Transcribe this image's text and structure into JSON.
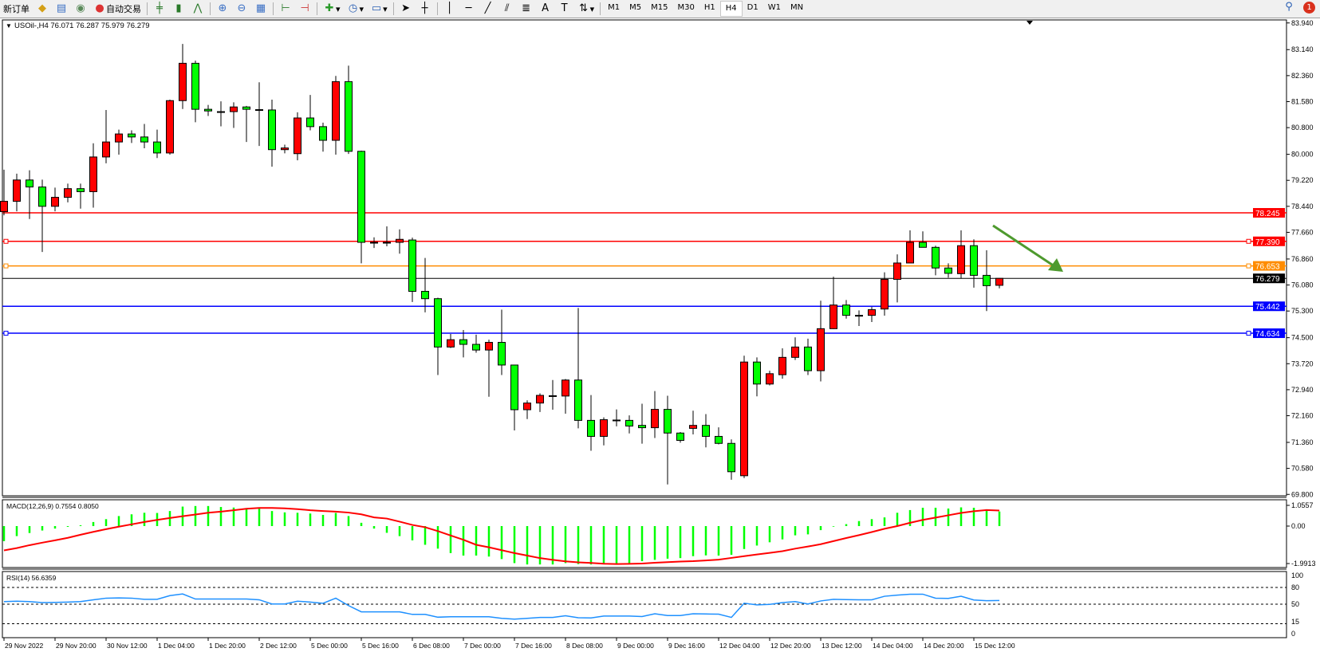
{
  "toolbar": {
    "new_order": "新订单",
    "auto_trading": "自动交易",
    "timeframes": [
      "M1",
      "M5",
      "M15",
      "M30",
      "H1",
      "H4",
      "D1",
      "W1",
      "MN"
    ],
    "active_timeframe": "H4",
    "notifications": "1"
  },
  "chart": {
    "header": "USOil-,H4  76.071 76.287 75.979 76.279",
    "macd_label": "MACD(12,26,9) 0.7554 0.8050",
    "rsi_label": "RSI(14) 56.6359",
    "bull_color": "#ff0000",
    "bear_color": "#00ff00"
  },
  "chart_data": {
    "type": "candlestick",
    "symbol": "USOil-",
    "timeframe": "H4",
    "ohlc_fields": [
      "open",
      "high",
      "low",
      "close"
    ],
    "candles": [
      [
        78.28,
        79.54,
        78.17,
        78.59
      ],
      [
        78.59,
        79.42,
        78.29,
        79.23
      ],
      [
        79.23,
        79.52,
        78.06,
        79.02
      ],
      [
        79.02,
        79.24,
        77.07,
        78.44
      ],
      [
        78.44,
        79.0,
        78.29,
        78.71
      ],
      [
        78.71,
        79.12,
        78.56,
        78.97
      ],
      [
        78.97,
        79.12,
        78.37,
        78.88
      ],
      [
        78.88,
        80.33,
        78.4,
        79.92
      ],
      [
        79.92,
        81.33,
        79.73,
        80.37
      ],
      [
        80.37,
        80.74,
        79.99,
        80.61
      ],
      [
        80.61,
        80.72,
        80.34,
        80.52
      ],
      [
        80.52,
        80.91,
        80.18,
        80.37
      ],
      [
        80.37,
        80.74,
        79.89,
        80.04
      ],
      [
        80.04,
        81.64,
        79.99,
        81.61
      ],
      [
        81.61,
        83.31,
        81.36,
        82.73
      ],
      [
        82.73,
        82.81,
        80.96,
        81.35
      ],
      [
        81.35,
        81.48,
        81.15,
        81.3
      ],
      [
        81.28,
        81.59,
        80.84,
        81.27
      ],
      [
        81.28,
        81.56,
        80.79,
        81.42
      ],
      [
        81.42,
        81.45,
        80.37,
        81.35
      ],
      [
        81.34,
        82.16,
        80.25,
        81.33
      ],
      [
        81.33,
        81.64,
        79.63,
        80.14
      ],
      [
        80.14,
        80.29,
        80.03,
        80.19
      ],
      [
        80.02,
        81.26,
        79.82,
        81.09
      ],
      [
        81.09,
        81.78,
        80.72,
        80.83
      ],
      [
        80.83,
        80.95,
        80.08,
        80.42
      ],
      [
        80.42,
        82.35,
        79.99,
        82.18
      ],
      [
        82.18,
        82.66,
        80.01,
        80.09
      ],
      [
        80.09,
        80.11,
        76.73,
        77.36
      ],
      [
        77.36,
        77.51,
        77.19,
        77.35
      ],
      [
        77.36,
        77.84,
        77.24,
        77.35
      ],
      [
        77.36,
        77.75,
        77.02,
        77.45
      ],
      [
        77.43,
        77.5,
        75.57,
        75.89
      ],
      [
        75.89,
        76.89,
        75.26,
        75.67
      ],
      [
        75.67,
        75.7,
        73.38,
        74.22
      ],
      [
        74.22,
        74.61,
        74.19,
        74.44
      ],
      [
        74.44,
        74.73,
        73.91,
        74.3
      ],
      [
        74.3,
        74.59,
        74.05,
        74.13
      ],
      [
        74.13,
        74.44,
        72.73,
        74.36
      ],
      [
        74.36,
        75.34,
        73.38,
        73.68
      ],
      [
        73.68,
        73.68,
        71.72,
        72.34
      ],
      [
        72.34,
        72.62,
        72.06,
        72.54
      ],
      [
        72.54,
        72.83,
        72.27,
        72.77
      ],
      [
        72.76,
        73.23,
        72.34,
        72.75
      ],
      [
        72.75,
        73.26,
        72.22,
        73.23
      ],
      [
        73.23,
        75.39,
        71.78,
        72.02
      ],
      [
        72.02,
        72.78,
        71.11,
        71.54
      ],
      [
        71.54,
        72.11,
        71.27,
        72.04
      ],
      [
        72.03,
        72.35,
        71.84,
        72.02
      ],
      [
        72.02,
        72.17,
        71.63,
        71.85
      ],
      [
        71.87,
        72.52,
        71.32,
        71.8
      ],
      [
        71.8,
        72.9,
        71.49,
        72.35
      ],
      [
        72.35,
        72.76,
        70.1,
        71.64
      ],
      [
        71.64,
        71.67,
        71.35,
        71.42
      ],
      [
        71.78,
        72.31,
        71.6,
        71.87
      ],
      [
        71.87,
        72.21,
        71.21,
        71.54
      ],
      [
        71.54,
        71.81,
        71.3,
        71.33
      ],
      [
        71.33,
        71.45,
        70.24,
        70.48
      ],
      [
        70.36,
        73.96,
        70.29,
        73.77
      ],
      [
        73.77,
        73.91,
        72.74,
        73.11
      ],
      [
        73.11,
        73.51,
        73.07,
        73.42
      ],
      [
        73.39,
        74.18,
        73.27,
        73.91
      ],
      [
        73.91,
        74.51,
        73.83,
        74.22
      ],
      [
        74.22,
        74.47,
        73.38,
        73.51
      ],
      [
        73.51,
        75.61,
        73.19,
        74.77
      ],
      [
        74.77,
        76.33,
        74.76,
        75.48
      ],
      [
        75.48,
        75.63,
        75.07,
        75.17
      ],
      [
        75.17,
        75.32,
        74.85,
        75.16
      ],
      [
        75.17,
        75.42,
        74.97,
        75.34
      ],
      [
        75.36,
        76.46,
        75.16,
        76.25
      ],
      [
        76.25,
        77.0,
        75.56,
        76.74
      ],
      [
        76.74,
        77.72,
        76.74,
        77.36
      ],
      [
        77.36,
        77.69,
        77.21,
        77.21
      ],
      [
        77.21,
        77.26,
        76.37,
        76.59
      ],
      [
        76.59,
        76.73,
        76.3,
        76.43
      ],
      [
        76.42,
        77.72,
        76.27,
        77.26
      ],
      [
        77.26,
        77.45,
        76.0,
        76.37
      ],
      [
        76.37,
        77.12,
        75.3,
        76.06
      ],
      [
        76.071,
        76.287,
        75.979,
        76.279
      ]
    ],
    "price_axis": {
      "range": [
        69.8,
        83.94
      ],
      "ticks": [
        "83.940",
        "83.140",
        "82.360",
        "81.580",
        "80.800",
        "80.000",
        "79.220",
        "78.440",
        "77.660",
        "76.860",
        "76.080",
        "75.300",
        "74.500",
        "73.720",
        "72.940",
        "72.160",
        "71.360",
        "70.580",
        "69.800"
      ]
    },
    "horizontal_lines": [
      {
        "price": "78.245",
        "color": "#ff0000"
      },
      {
        "price": "77.390",
        "color": "#ff0000"
      },
      {
        "price": "76.653",
        "color": "#ff8c00"
      },
      {
        "price": "76.279",
        "color": "#000000"
      },
      {
        "price": "75.442",
        "color": "#0000ff"
      },
      {
        "price": "74.634",
        "color": "#0000ff"
      }
    ],
    "annotation_arrow": {
      "direction": "down-right",
      "color": "#4e9a2e"
    },
    "time_labels": [
      "29 Nov 2022",
      "29 Nov 20:00",
      "30 Nov 12:00",
      "1 Dec 04:00",
      "1 Dec 20:00",
      "2 Dec 12:00",
      "5 Dec 00:00",
      "5 Dec 16:00",
      "6 Dec 08:00",
      "7 Dec 00:00",
      "7 Dec 16:00",
      "8 Dec 08:00",
      "9 Dec 00:00",
      "9 Dec 16:00",
      "12 Dec 04:00",
      "12 Dec 20:00",
      "13 Dec 12:00",
      "14 Dec 04:00",
      "14 Dec 20:00",
      "15 Dec 12:00"
    ],
    "macd": {
      "ticks": [
        "1.0557",
        "0.00",
        "-1.9913"
      ],
      "range": [
        -1.9913,
        1.0557
      ],
      "histogram_color": "#00ff00",
      "signal_color": "#ff0000",
      "histogram": [
        -0.78,
        -0.52,
        -0.36,
        -0.23,
        -0.13,
        -0.04,
        0.04,
        0.21,
        0.36,
        0.52,
        0.61,
        0.69,
        0.68,
        0.78,
        1.01,
        1.04,
        1.04,
        0.99,
        0.96,
        0.91,
        0.91,
        0.78,
        0.71,
        0.69,
        0.65,
        0.58,
        0.68,
        0.52,
        0.17,
        -0.13,
        -0.35,
        -0.52,
        -0.74,
        -0.97,
        -1.17,
        -1.4,
        -1.53,
        -1.53,
        -1.58,
        -1.71,
        -1.92,
        -1.99,
        -1.99,
        -1.99,
        -1.92,
        -1.97,
        -1.99,
        -1.95,
        -1.95,
        -1.95,
        -1.82,
        -1.75,
        -1.69,
        -1.66,
        -1.56,
        -1.52,
        -1.53,
        -1.49,
        -1.19,
        -1.01,
        -0.84,
        -0.69,
        -0.48,
        -0.43,
        -0.21,
        -0.03,
        0.1,
        0.26,
        0.36,
        0.45,
        0.69,
        0.83,
        0.95,
        0.95,
        0.91,
        0.97,
        0.95,
        0.87,
        0.7554
      ],
      "signal": [
        -1.26,
        -1.14,
        -0.99,
        -0.86,
        -0.74,
        -0.61,
        -0.45,
        -0.3,
        -0.16,
        -0.03,
        0.09,
        0.21,
        0.32,
        0.42,
        0.51,
        0.6,
        0.69,
        0.75,
        0.82,
        0.9,
        0.94,
        0.94,
        0.92,
        0.88,
        0.82,
        0.78,
        0.75,
        0.7,
        0.61,
        0.45,
        0.39,
        0.23,
        0.06,
        -0.06,
        -0.26,
        -0.49,
        -0.71,
        -0.97,
        -1.1,
        -1.25,
        -1.4,
        -1.53,
        -1.66,
        -1.75,
        -1.83,
        -1.88,
        -1.91,
        -1.95,
        -1.97,
        -1.96,
        -1.94,
        -1.9,
        -1.87,
        -1.84,
        -1.82,
        -1.78,
        -1.74,
        -1.65,
        -1.56,
        -1.47,
        -1.39,
        -1.3,
        -1.17,
        -1.06,
        -0.94,
        -0.78,
        -0.62,
        -0.47,
        -0.31,
        -0.14,
        0.0,
        0.17,
        0.32,
        0.44,
        0.56,
        0.68,
        0.77,
        0.83,
        0.805
      ]
    },
    "rsi": {
      "ticks": [
        "100",
        "80",
        "50",
        "15",
        "0"
      ],
      "levels": [
        80,
        50,
        15
      ],
      "color": "#1e90ff",
      "values": [
        54.6,
        55.4,
        54.6,
        52.9,
        53.3,
        53.8,
        54.6,
        57.9,
        60.8,
        61.3,
        60.8,
        58.8,
        58.8,
        65.4,
        68.3,
        59.2,
        59.2,
        59.2,
        59.2,
        59.2,
        57.9,
        50.4,
        50.4,
        55.4,
        53.8,
        51.7,
        60.8,
        47.5,
        36.3,
        36.3,
        36.3,
        36.3,
        31.7,
        31.7,
        26.7,
        27.5,
        27.5,
        27.5,
        27.5,
        24.6,
        23.3,
        24.6,
        26.3,
        26.3,
        29.2,
        25.8,
        25.4,
        28.8,
        28.8,
        28.8,
        27.9,
        32.9,
        29.6,
        29.6,
        32.9,
        32.5,
        32.1,
        26.3,
        51.7,
        48.8,
        49.6,
        52.9,
        54.6,
        50.4,
        55.8,
        58.8,
        58.3,
        57.9,
        57.9,
        64.2,
        66.3,
        67.9,
        67.9,
        60.8,
        60.4,
        64.2,
        57.5,
        56.3,
        56.6359
      ]
    }
  }
}
